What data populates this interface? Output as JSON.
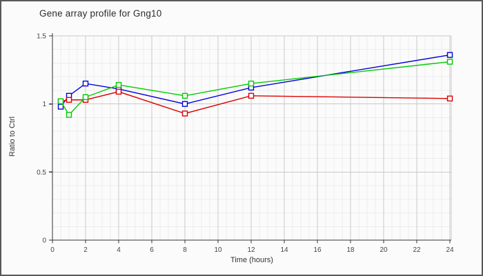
{
  "chart_data": {
    "type": "line",
    "title": "Gene array profile for Gng10",
    "xlabel": "Time (hours)",
    "ylabel": "Ratio to Ctrl",
    "x": [
      0.5,
      1,
      2,
      4,
      8,
      12,
      24
    ],
    "series": [
      {
        "name": "blue-series",
        "color": "#0000dd",
        "values": [
          0.98,
          1.06,
          1.15,
          1.11,
          1.0,
          1.12,
          1.36
        ]
      },
      {
        "name": "red-series",
        "color": "#dd0000",
        "values": [
          1.02,
          1.03,
          1.03,
          1.09,
          0.93,
          1.06,
          1.04
        ]
      },
      {
        "name": "green-series",
        "color": "#00cc00",
        "values": [
          1.02,
          0.92,
          1.05,
          1.14,
          1.06,
          1.15,
          1.31
        ]
      }
    ],
    "xlim": [
      0,
      24
    ],
    "ylim": [
      0,
      1.5
    ],
    "xticks": [
      0,
      2,
      4,
      6,
      8,
      10,
      12,
      14,
      16,
      18,
      20,
      22,
      24
    ],
    "yticks": [
      0,
      0.5,
      1,
      1.5
    ],
    "ytick_labels": [
      "0",
      "0.5",
      "1",
      "1.5"
    ],
    "minor_x_step": 0.5,
    "minor_y_step": 0.1,
    "grid": true,
    "legend": false,
    "marker": "open-square"
  },
  "colors": {
    "background": "#fbfbfb",
    "frame_border": "#58585a",
    "axis": "#333333",
    "grid_major": "#c9c9c9",
    "grid_minor": "#ececec",
    "tick_text": "#444444",
    "marker_fill": "#fbfbfb"
  }
}
